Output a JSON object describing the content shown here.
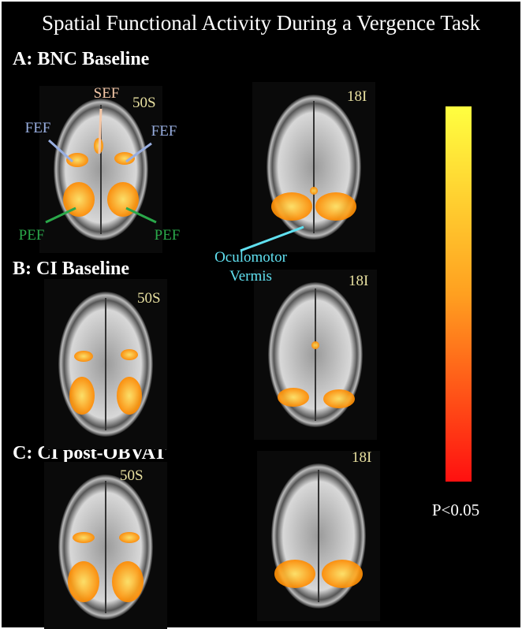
{
  "header": {
    "title": "Spatial Functional Activity During a Vergence Task"
  },
  "panels": [
    {
      "label": "A: BNC Baseline",
      "slices": [
        "50S",
        "18I"
      ]
    },
    {
      "label": "B: CI Baseline",
      "slices": [
        "50S",
        "18I"
      ]
    },
    {
      "label": "C: CI post-OBVAT",
      "slices": [
        "50S",
        "18I"
      ]
    }
  ],
  "annotations": {
    "sef": "SEF",
    "fef_left": "FEF",
    "fef_right": "FEF",
    "pef_left": "PEF",
    "pef_right": "PEF",
    "vermis": [
      "Oculomotor",
      "Vermis"
    ]
  },
  "colorbar": {
    "label": "P<0.05"
  }
}
